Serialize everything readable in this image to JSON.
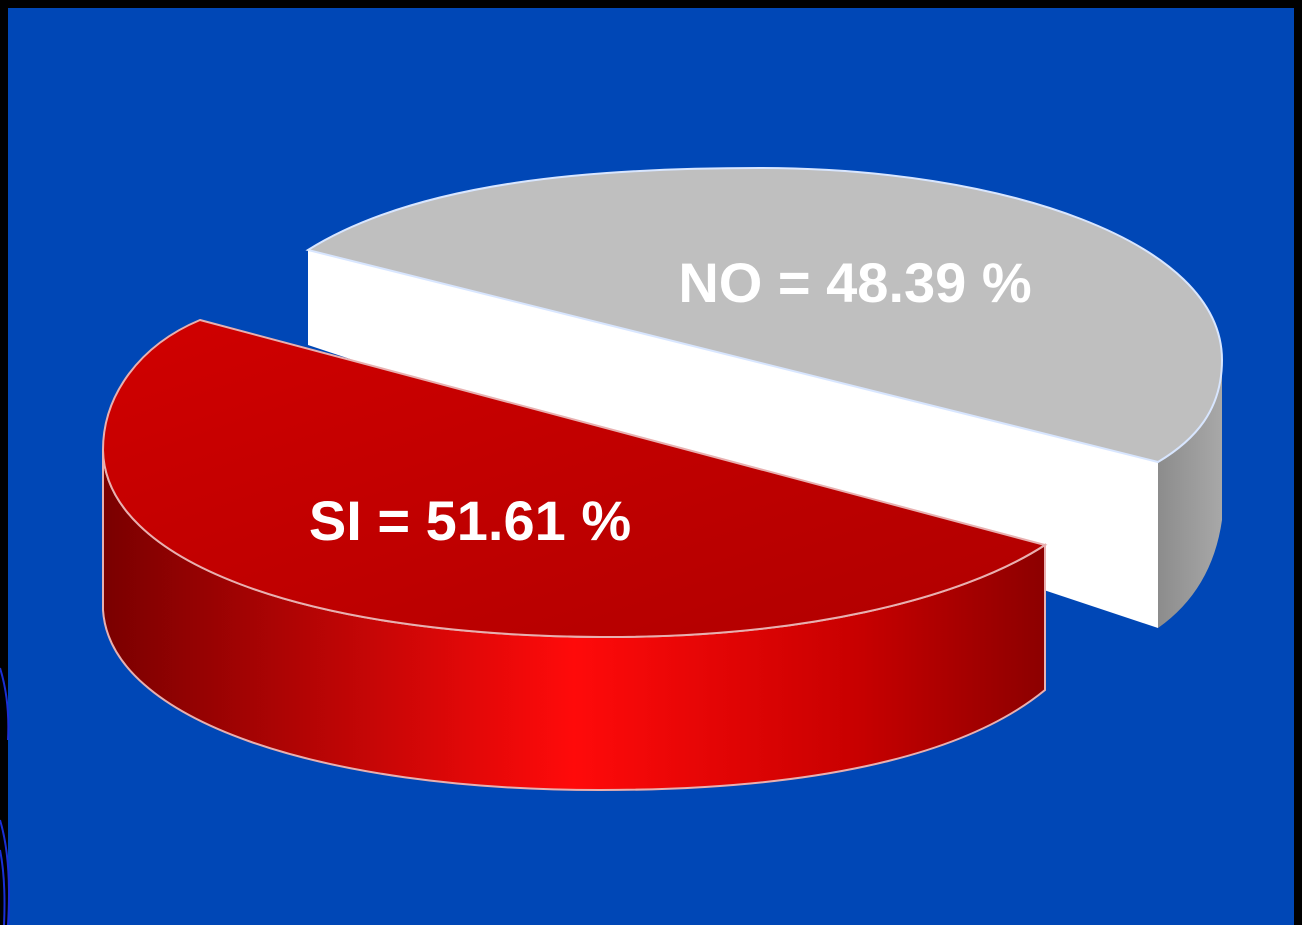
{
  "colors": {
    "background": "#0047b6",
    "frame": "#000000",
    "corner_lines": "#1a2fd6",
    "si_slice": "#c00000",
    "si_slice_bright": "#ff0000",
    "si_slice_dark": "#8c0000",
    "no_slice_top": "#bfbfbf",
    "no_slice_front": "#ffffff",
    "no_slice_side": "#9a9a9a",
    "label": "#ffffff"
  },
  "chart_data": {
    "type": "pie",
    "style": "3d-exploded",
    "slices": [
      {
        "label": "SI = 51.61 %",
        "category": "SI",
        "value": 51.61,
        "color": "#c00000"
      },
      {
        "label": "NO = 48.39 %",
        "category": "NO",
        "value": 48.39,
        "color": "#bfbfbf"
      }
    ],
    "unit": "%",
    "legend": "none"
  }
}
